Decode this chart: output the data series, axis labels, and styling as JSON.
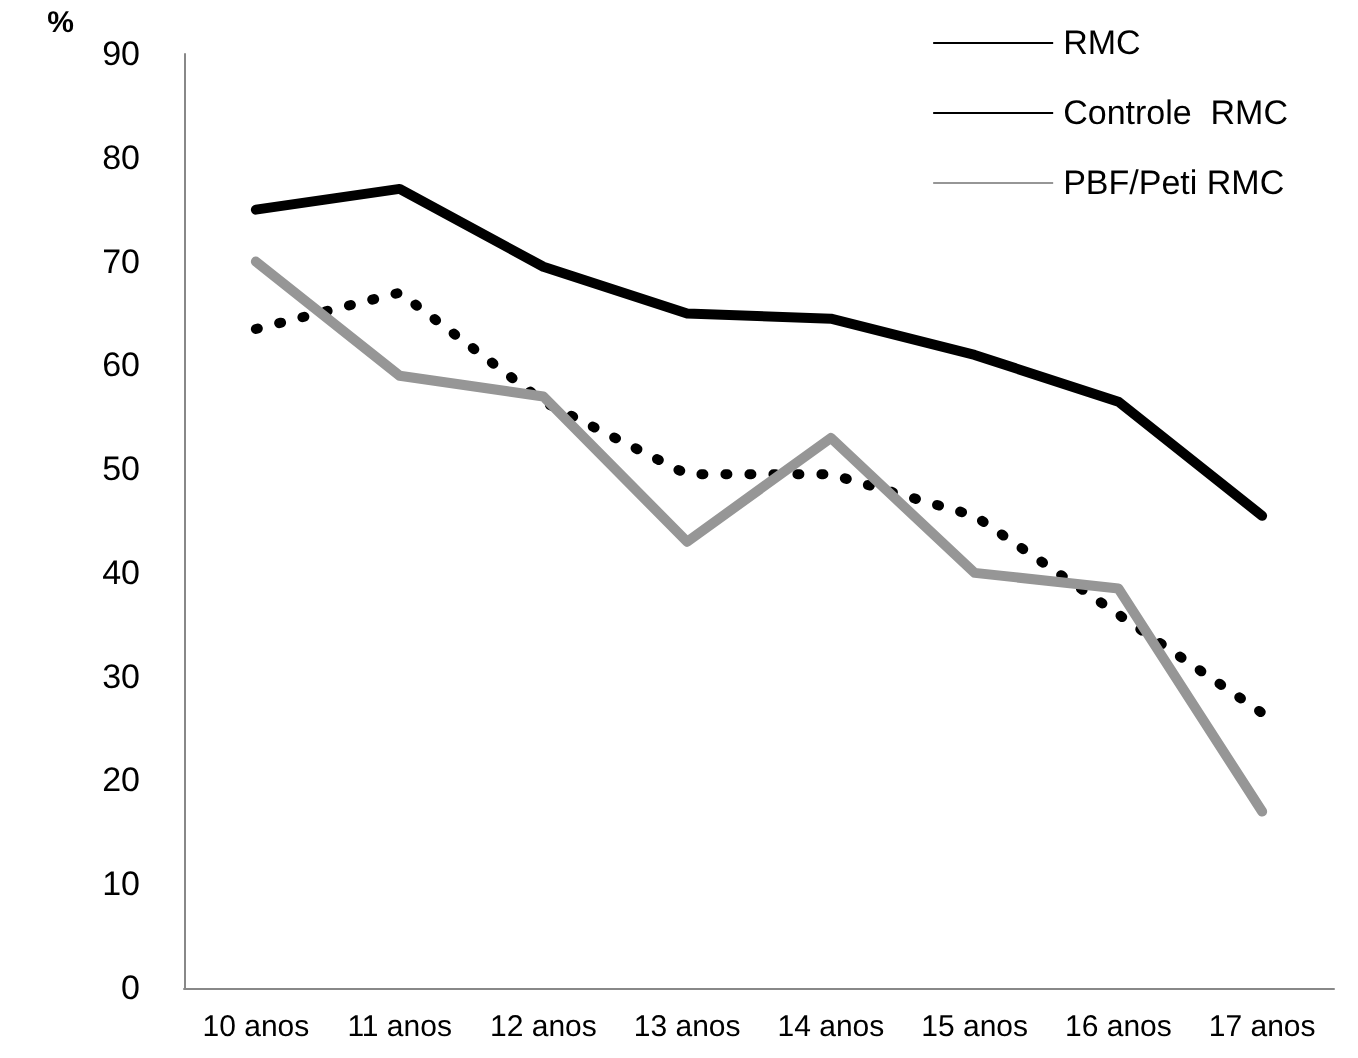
{
  "chart_data": {
    "type": "line",
    "ylabel": "%",
    "categories": [
      "10 anos",
      "11 anos",
      "12 anos",
      "13 anos",
      "14 anos",
      "15 anos",
      "16 anos",
      "17 anos"
    ],
    "series": [
      {
        "name": "RMC",
        "color": "#000000",
        "line_style": "solid",
        "values": [
          75,
          77,
          69.5,
          65,
          64.5,
          61,
          56.5,
          45.5
        ]
      },
      {
        "name": "Controle  RMC",
        "color": "#000000",
        "line_style": "dotted",
        "values": [
          63.5,
          67,
          56.5,
          49.5,
          49.5,
          45.5,
          36,
          26.5
        ]
      },
      {
        "name": "PBF/Peti RMC",
        "color": "#969696",
        "line_style": "solid",
        "values": [
          70,
          59,
          57,
          43,
          53,
          40,
          38.5,
          17
        ]
      }
    ],
    "ylim": [
      0,
      90
    ],
    "yticks": [
      0,
      10,
      20,
      30,
      40,
      50,
      60,
      70,
      80,
      90
    ],
    "grid": false,
    "legend": "top right",
    "marker": "none"
  }
}
